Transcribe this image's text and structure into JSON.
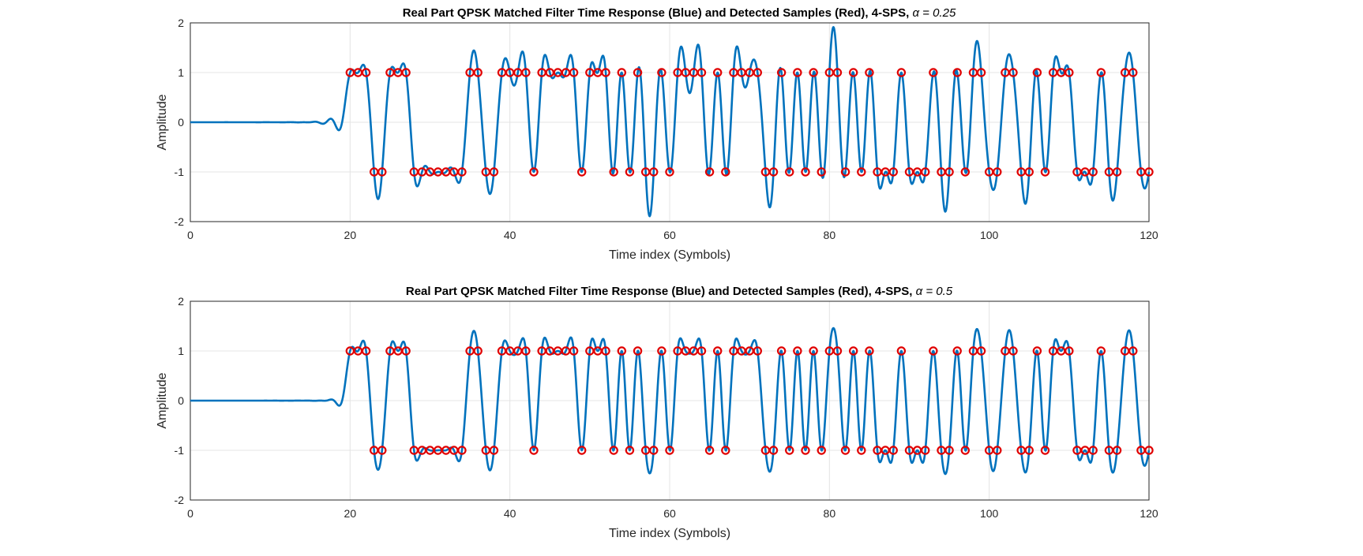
{
  "chart_data": [
    {
      "type": "line",
      "title": "Real Part QPSK Matched Filter Time Response (Blue) and Detected Samples (Red), 4-SPS, ",
      "title_alpha": "α = 0.25",
      "xlabel": "Time index (Symbols)",
      "ylabel": "Amplitude",
      "xlim": [
        0,
        120
      ],
      "ylim": [
        -2,
        2
      ],
      "xticks": [
        "0",
        "20",
        "40",
        "60",
        "80",
        "100",
        "120"
      ],
      "yticks": [
        "2",
        "1",
        "0",
        "-1",
        "-2"
      ],
      "grid": true,
      "rolloff": 0.25,
      "samples_per_symbol": 4,
      "symbol_start": 20,
      "symbol_end": 120,
      "colors": {
        "response": "#0072BD",
        "samples": "#E00000"
      },
      "symbols": [
        1,
        1,
        1,
        -1,
        -1,
        1,
        1,
        1,
        -1,
        -1,
        -1,
        -1,
        -1,
        -1,
        -1,
        1,
        1,
        -1,
        -1,
        1,
        1,
        1,
        1,
        -1,
        1,
        1,
        1,
        1,
        1,
        -1,
        1,
        1,
        1,
        -1,
        1,
        -1,
        1,
        -1,
        -1,
        1,
        -1,
        1,
        1,
        1,
        1,
        -1,
        1,
        -1,
        1,
        1,
        1,
        1,
        -1,
        -1,
        1,
        -1,
        1,
        -1,
        1,
        -1,
        1,
        1,
        -1,
        1,
        -1,
        1,
        -1,
        -1,
        -1,
        1,
        -1,
        -1,
        -1,
        1,
        -1,
        -1,
        1,
        -1,
        1,
        1,
        -1,
        -1,
        1,
        1,
        -1,
        -1,
        1,
        -1,
        1,
        1,
        1,
        -1,
        -1,
        -1,
        1,
        -1,
        -1,
        1,
        1,
        -1,
        -1
      ]
    },
    {
      "type": "line",
      "title": "Real Part QPSK Matched Filter Time Response (Blue) and Detected Samples (Red), 4-SPS, ",
      "title_alpha": "α = 0.5",
      "xlabel": "Time index (Symbols)",
      "ylabel": "Amplitude",
      "xlim": [
        0,
        120
      ],
      "ylim": [
        -2,
        2
      ],
      "xticks": [
        "0",
        "20",
        "40",
        "60",
        "80",
        "100",
        "120"
      ],
      "yticks": [
        "2",
        "1",
        "0",
        "-1",
        "-2"
      ],
      "grid": true,
      "rolloff": 0.5,
      "samples_per_symbol": 4,
      "symbol_start": 20,
      "symbol_end": 120,
      "colors": {
        "response": "#0072BD",
        "samples": "#E00000"
      },
      "symbols": [
        1,
        1,
        1,
        -1,
        -1,
        1,
        1,
        1,
        -1,
        -1,
        -1,
        -1,
        -1,
        -1,
        -1,
        1,
        1,
        -1,
        -1,
        1,
        1,
        1,
        1,
        -1,
        1,
        1,
        1,
        1,
        1,
        -1,
        1,
        1,
        1,
        -1,
        1,
        -1,
        1,
        -1,
        -1,
        1,
        -1,
        1,
        1,
        1,
        1,
        -1,
        1,
        -1,
        1,
        1,
        1,
        1,
        -1,
        -1,
        1,
        -1,
        1,
        -1,
        1,
        -1,
        1,
        1,
        -1,
        1,
        -1,
        1,
        -1,
        -1,
        -1,
        1,
        -1,
        -1,
        -1,
        1,
        -1,
        -1,
        1,
        -1,
        1,
        1,
        -1,
        -1,
        1,
        1,
        -1,
        -1,
        1,
        -1,
        1,
        1,
        1,
        -1,
        -1,
        -1,
        1,
        -1,
        -1,
        1,
        1,
        -1,
        -1
      ]
    }
  ]
}
